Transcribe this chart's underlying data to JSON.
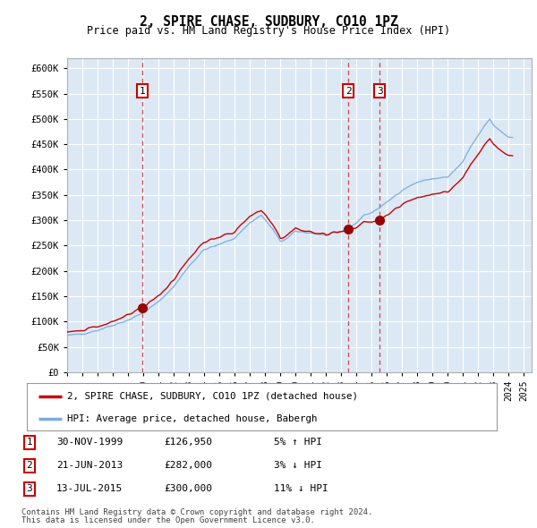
{
  "title": "2, SPIRE CHASE, SUDBURY, CO10 1PZ",
  "subtitle": "Price paid vs. HM Land Registry's House Price Index (HPI)",
  "ylim": [
    0,
    620000
  ],
  "yticks": [
    0,
    50000,
    100000,
    150000,
    200000,
    250000,
    300000,
    350000,
    400000,
    450000,
    500000,
    550000,
    600000
  ],
  "ytick_labels": [
    "£0",
    "£50K",
    "£100K",
    "£150K",
    "£200K",
    "£250K",
    "£300K",
    "£350K",
    "£400K",
    "£450K",
    "£500K",
    "£550K",
    "£600K"
  ],
  "xlim_start": 1995.0,
  "xlim_end": 2025.5,
  "plot_bg_color": "#dce9f5",
  "grid_color": "#ffffff",
  "red_line_color": "#cc0000",
  "blue_line_color": "#7aaddc",
  "sale_marker_color": "#990000",
  "sale_box_color": "#cc0000",
  "sales": [
    {
      "num": 1,
      "year": 1999.92,
      "price": 126950,
      "date": "30-NOV-1999",
      "pct": "5%",
      "dir": "↑"
    },
    {
      "num": 2,
      "year": 2013.47,
      "price": 282000,
      "date": "21-JUN-2013",
      "pct": "3%",
      "dir": "↓"
    },
    {
      "num": 3,
      "year": 2015.53,
      "price": 300000,
      "date": "13-JUL-2015",
      "pct": "11%",
      "dir": "↓"
    }
  ],
  "legend_label_red": "2, SPIRE CHASE, SUDBURY, CO10 1PZ (detached house)",
  "legend_label_blue": "HPI: Average price, detached house, Babergh",
  "footer1": "Contains HM Land Registry data © Crown copyright and database right 2024.",
  "footer2": "This data is licensed under the Open Government Licence v3.0."
}
